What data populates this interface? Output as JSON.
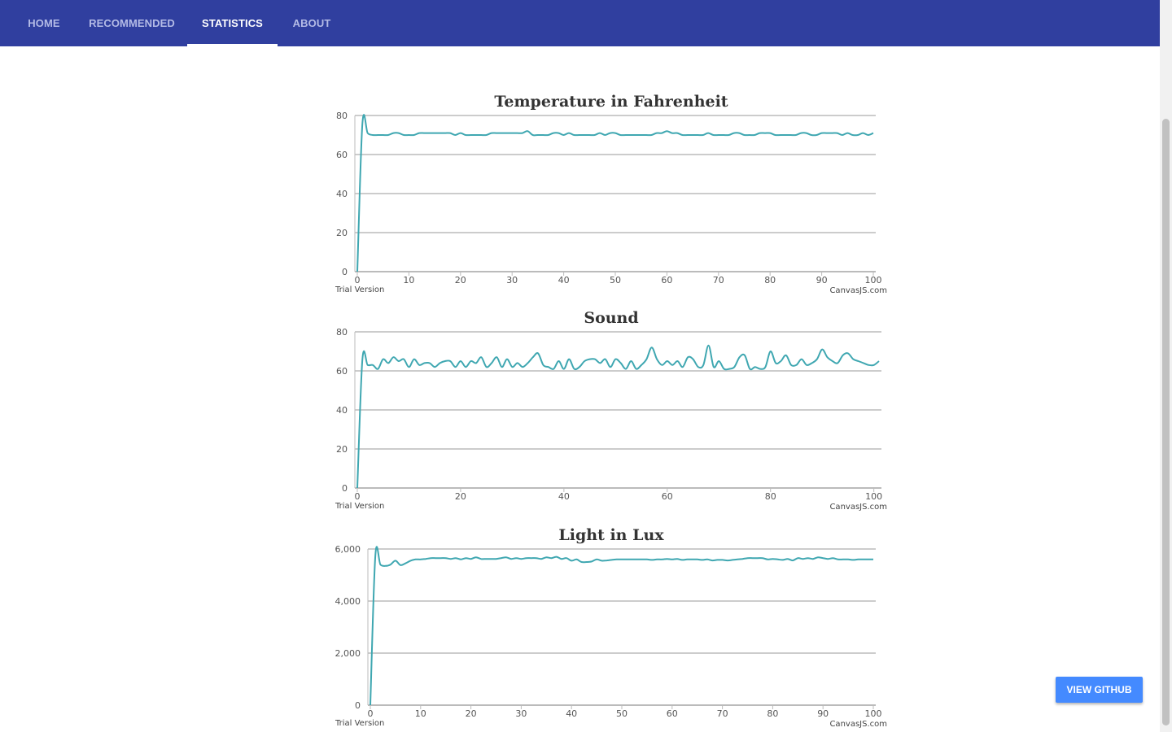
{
  "nav": {
    "tabs": [
      {
        "label": "HOME"
      },
      {
        "label": "RECOMMENDED"
      },
      {
        "label": "STATISTICS"
      },
      {
        "label": "ABOUT"
      }
    ],
    "active": "STATISTICS"
  },
  "github_button": {
    "label": "VIEW GITHUB"
  },
  "watermark": {
    "left": "Trial Version",
    "right": "CanvasJS.com"
  },
  "colors": {
    "navbar": "#303f9f",
    "accent": "#448aff",
    "line": "#3fa7b1",
    "grid": "#cccccc"
  },
  "chart_data": [
    {
      "type": "line",
      "title": "Temperature in Fahrenheit",
      "xlim": [
        0,
        100
      ],
      "ylim": [
        0,
        80
      ],
      "xticks": [
        0,
        10,
        20,
        30,
        40,
        50,
        60,
        70,
        80,
        90,
        100
      ],
      "xtick_labels": [
        "0",
        "10",
        "20",
        "30",
        "40",
        "50",
        "60",
        "70",
        "80",
        "90",
        "100"
      ],
      "yticks": [
        0,
        20,
        40,
        60,
        80
      ],
      "ytick_labels": [
        "0",
        "20",
        "40",
        "60",
        "80"
      ],
      "grid": true,
      "series": [
        {
          "x": [
            0,
            1,
            2,
            3,
            4,
            5,
            6,
            7,
            8,
            9,
            10,
            11,
            12,
            13,
            14,
            15,
            16,
            17,
            18,
            19,
            20,
            21,
            22,
            23,
            24,
            25,
            26,
            27,
            28,
            29,
            30,
            31,
            32,
            33,
            34,
            35,
            36,
            37,
            38,
            39,
            40,
            41,
            42,
            43,
            44,
            45,
            46,
            47,
            48,
            49,
            50,
            51,
            52,
            53,
            54,
            55,
            56,
            57,
            58,
            59,
            60,
            61,
            62,
            63,
            64,
            65,
            66,
            67,
            68,
            69,
            70,
            71,
            72,
            73,
            74,
            75,
            76,
            77,
            78,
            79,
            80,
            81,
            82,
            83,
            84,
            85,
            86,
            87,
            88,
            89,
            90,
            91,
            92,
            93,
            94,
            95,
            96,
            97,
            98,
            99,
            100
          ],
          "y": [
            0,
            76,
            71,
            70,
            70,
            70,
            70,
            71,
            71,
            70,
            70,
            70,
            71,
            71,
            71,
            71,
            71,
            71,
            71,
            70,
            71,
            70,
            70,
            70,
            70,
            70,
            71,
            71,
            71,
            71,
            71,
            71,
            71,
            72,
            70,
            70,
            70,
            70,
            71,
            71,
            70,
            71,
            70,
            70,
            70,
            70,
            70,
            71,
            70,
            71,
            71,
            70,
            70,
            70,
            70,
            70,
            70,
            70,
            71,
            71,
            72,
            71,
            71,
            70,
            70,
            70,
            70,
            70,
            71,
            70,
            70,
            70,
            70,
            71,
            71,
            70,
            70,
            70,
            71,
            71,
            71,
            70,
            70,
            70,
            70,
            70,
            71,
            71,
            70,
            70,
            71,
            71,
            71,
            71,
            70,
            71,
            70,
            70,
            71,
            70,
            71
          ]
        }
      ]
    },
    {
      "type": "line",
      "title": "Sound",
      "xlim": [
        0,
        101
      ],
      "ylim": [
        0,
        80
      ],
      "xticks": [
        0,
        20,
        40,
        60,
        80,
        100
      ],
      "xtick_labels": [
        "0",
        "20",
        "40",
        "60",
        "80",
        "100"
      ],
      "yticks": [
        0,
        20,
        40,
        60,
        80
      ],
      "ytick_labels": [
        "0",
        "20",
        "40",
        "60",
        "80"
      ],
      "grid": true,
      "series": [
        {
          "x": [
            0,
            1,
            2,
            3,
            4,
            5,
            6,
            7,
            8,
            9,
            10,
            11,
            12,
            13,
            14,
            15,
            16,
            17,
            18,
            19,
            20,
            21,
            22,
            23,
            24,
            25,
            26,
            27,
            28,
            29,
            30,
            31,
            32,
            33,
            34,
            35,
            36,
            37,
            38,
            39,
            40,
            41,
            42,
            43,
            44,
            45,
            46,
            47,
            48,
            49,
            50,
            51,
            52,
            53,
            54,
            55,
            56,
            57,
            58,
            59,
            60,
            61,
            62,
            63,
            64,
            65,
            66,
            67,
            68,
            69,
            70,
            71,
            72,
            73,
            74,
            75,
            76,
            77,
            78,
            79,
            80,
            81,
            82,
            83,
            84,
            85,
            86,
            87,
            88,
            89,
            90,
            91,
            92,
            93,
            94,
            95,
            96,
            97,
            98,
            99,
            100,
            101
          ],
          "y": [
            0,
            66,
            63,
            63,
            61,
            66,
            64,
            67,
            65,
            66,
            62,
            66,
            63,
            64,
            64,
            62,
            64,
            65,
            65,
            62,
            65,
            62,
            65,
            64,
            67,
            62,
            64,
            67,
            62,
            66,
            62,
            64,
            62,
            64,
            67,
            69,
            63,
            62,
            61,
            65,
            61,
            66,
            61,
            62,
            65,
            66,
            66,
            64,
            66,
            62,
            66,
            64,
            61,
            65,
            61,
            63,
            66,
            72,
            66,
            63,
            65,
            63,
            65,
            62,
            67,
            66,
            62,
            63,
            73,
            62,
            65,
            61,
            61,
            62,
            67,
            68,
            61,
            62,
            61,
            62,
            70,
            64,
            65,
            68,
            63,
            63,
            66,
            63,
            64,
            66,
            71,
            67,
            65,
            64,
            68,
            69,
            66,
            65,
            64,
            63,
            63,
            65
          ]
        }
      ]
    },
    {
      "type": "line",
      "title": "Light in Lux",
      "xlim": [
        0,
        100
      ],
      "ylim": [
        0,
        6000
      ],
      "xticks": [
        0,
        10,
        20,
        30,
        40,
        50,
        60,
        70,
        80,
        90,
        100
      ],
      "xtick_labels": [
        "0",
        "10",
        "20",
        "30",
        "40",
        "50",
        "60",
        "70",
        "80",
        "90",
        "100"
      ],
      "yticks": [
        0,
        2000,
        4000,
        6000
      ],
      "ytick_labels": [
        "0",
        "2,000",
        "4,000",
        "6,000"
      ],
      "grid": true,
      "series": [
        {
          "x": [
            0,
            1,
            2,
            3,
            4,
            5,
            6,
            7,
            8,
            9,
            10,
            11,
            12,
            13,
            14,
            15,
            16,
            17,
            18,
            19,
            20,
            21,
            22,
            23,
            24,
            25,
            26,
            27,
            28,
            29,
            30,
            31,
            32,
            33,
            34,
            35,
            36,
            37,
            38,
            39,
            40,
            41,
            42,
            43,
            44,
            45,
            46,
            47,
            48,
            49,
            50,
            51,
            52,
            53,
            54,
            55,
            56,
            57,
            58,
            59,
            60,
            61,
            62,
            63,
            64,
            65,
            66,
            67,
            68,
            69,
            70,
            71,
            72,
            73,
            74,
            75,
            76,
            77,
            78,
            79,
            80,
            81,
            82,
            83,
            84,
            85,
            86,
            87,
            88,
            89,
            90,
            91,
            92,
            93,
            94,
            95,
            96,
            97,
            98,
            99,
            100
          ],
          "y": [
            0,
            5750,
            5400,
            5350,
            5400,
            5550,
            5380,
            5450,
            5550,
            5600,
            5600,
            5620,
            5650,
            5650,
            5650,
            5650,
            5620,
            5650,
            5600,
            5650,
            5620,
            5680,
            5620,
            5620,
            5620,
            5620,
            5650,
            5680,
            5620,
            5650,
            5620,
            5650,
            5650,
            5650,
            5620,
            5680,
            5650,
            5700,
            5620,
            5650,
            5550,
            5600,
            5500,
            5500,
            5520,
            5600,
            5550,
            5560,
            5580,
            5600,
            5600,
            5600,
            5600,
            5600,
            5600,
            5600,
            5580,
            5600,
            5600,
            5620,
            5600,
            5620,
            5580,
            5600,
            5600,
            5600,
            5580,
            5600,
            5560,
            5580,
            5580,
            5560,
            5580,
            5600,
            5620,
            5650,
            5650,
            5650,
            5650,
            5600,
            5620,
            5600,
            5580,
            5620,
            5560,
            5650,
            5620,
            5650,
            5620,
            5680,
            5650,
            5620,
            5650,
            5600,
            5600,
            5600,
            5580,
            5600,
            5600,
            5600,
            5600
          ]
        }
      ]
    }
  ]
}
